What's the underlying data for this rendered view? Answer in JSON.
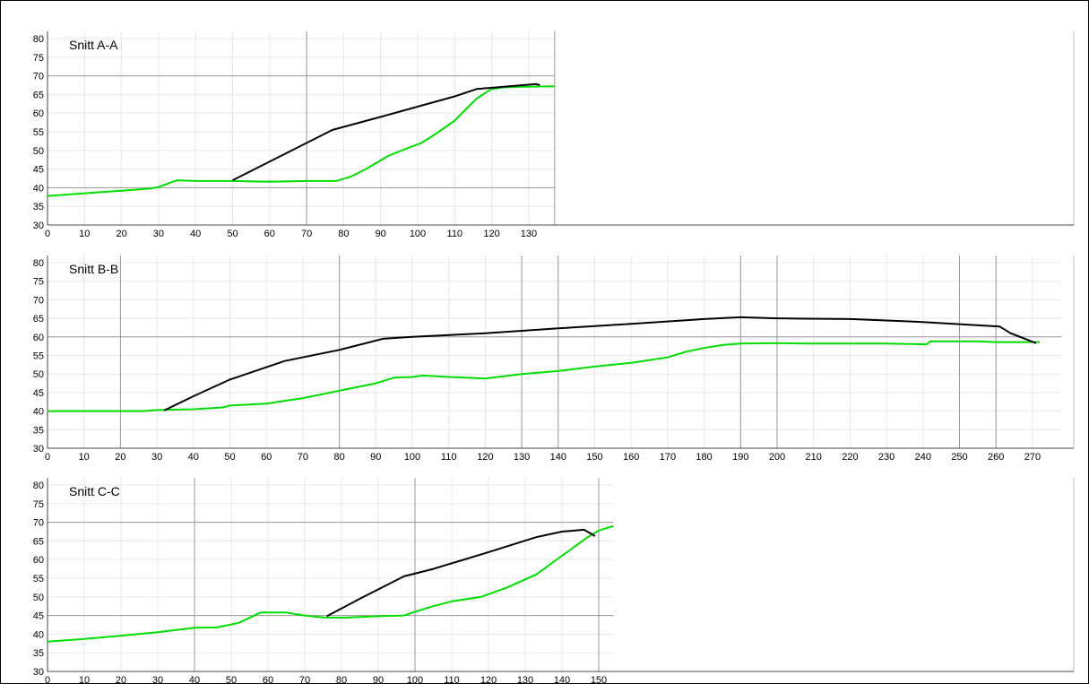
{
  "chart_data": [
    {
      "type": "line",
      "title": "Snitt A-A",
      "xlabel": "",
      "ylabel": "",
      "xlim": [
        0,
        137
      ],
      "ylim": [
        30,
        80
      ],
      "x_ticks": [
        0,
        10,
        20,
        30,
        40,
        50,
        60,
        70,
        80,
        90,
        100,
        110,
        120,
        130
      ],
      "y_ticks": [
        30,
        35,
        40,
        45,
        50,
        55,
        60,
        65,
        70,
        75,
        80
      ],
      "major_x": [
        70,
        137
      ],
      "major_y": [
        40,
        70
      ],
      "series": [
        {
          "color": "#00dd00",
          "points": [
            [
              0,
              37.8
            ],
            [
              10,
              38.5
            ],
            [
              20,
              39.2
            ],
            [
              28,
              39.8
            ],
            [
              30,
              40.2
            ],
            [
              35,
              42
            ],
            [
              40,
              41.8
            ],
            [
              50,
              41.8
            ],
            [
              60,
              41.6
            ],
            [
              70,
              41.8
            ],
            [
              78,
              41.8
            ],
            [
              82,
              43
            ],
            [
              86,
              45
            ],
            [
              92,
              48.5
            ],
            [
              97,
              50.5
            ],
            [
              101,
              52
            ],
            [
              105,
              54.5
            ],
            [
              110,
              58
            ],
            [
              113,
              61
            ],
            [
              116,
              64
            ],
            [
              120,
              66.5
            ],
            [
              124,
              67
            ],
            [
              137,
              67.2
            ]
          ]
        },
        {
          "color": "#000000",
          "points": [
            [
              50,
              42
            ],
            [
              77,
              55.5
            ],
            [
              90,
              59
            ],
            [
              110,
              64.5
            ],
            [
              116,
              66.5
            ],
            [
              132,
              67.8
            ],
            [
              133,
              67.5
            ]
          ]
        }
      ]
    },
    {
      "type": "line",
      "title": "Snitt B-B",
      "xlabel": "",
      "ylabel": "",
      "xlim": [
        0,
        278
      ],
      "ylim": [
        30,
        80
      ],
      "x_ticks": [
        0,
        10,
        20,
        30,
        40,
        50,
        60,
        70,
        80,
        90,
        100,
        110,
        120,
        130,
        140,
        150,
        160,
        170,
        180,
        190,
        200,
        210,
        220,
        230,
        240,
        250,
        260,
        270
      ],
      "y_ticks": [
        30,
        35,
        40,
        45,
        50,
        55,
        60,
        65,
        70,
        75,
        80
      ],
      "major_x": [
        20,
        80,
        130,
        140,
        190,
        200,
        250,
        260
      ],
      "major_y": [
        60
      ],
      "series": [
        {
          "color": "#00dd00",
          "points": [
            [
              0,
              40
            ],
            [
              26,
              40
            ],
            [
              30,
              40.3
            ],
            [
              40,
              40.5
            ],
            [
              48,
              41
            ],
            [
              50,
              41.5
            ],
            [
              60,
              42
            ],
            [
              70,
              43.5
            ],
            [
              80,
              45.5
            ],
            [
              90,
              47.5
            ],
            [
              95,
              49
            ],
            [
              100,
              49.2
            ],
            [
              103,
              49.6
            ],
            [
              110,
              49.2
            ],
            [
              120,
              48.8
            ],
            [
              130,
              50
            ],
            [
              140,
              50.8
            ],
            [
              150,
              52
            ],
            [
              160,
              53
            ],
            [
              170,
              54.5
            ],
            [
              175,
              56
            ],
            [
              180,
              57
            ],
            [
              185,
              57.8
            ],
            [
              190,
              58.2
            ],
            [
              200,
              58.3
            ],
            [
              210,
              58.2
            ],
            [
              220,
              58.2
            ],
            [
              230,
              58.2
            ],
            [
              241,
              58
            ],
            [
              242,
              58.8
            ],
            [
              255,
              58.8
            ],
            [
              260,
              58.6
            ],
            [
              272,
              58.6
            ]
          ]
        },
        {
          "color": "#000000",
          "points": [
            [
              32,
              40.2
            ],
            [
              40,
              44
            ],
            [
              50,
              48.5
            ],
            [
              65,
              53.5
            ],
            [
              80,
              56.5
            ],
            [
              92,
              59.5
            ],
            [
              100,
              60
            ],
            [
              120,
              61
            ],
            [
              140,
              62.3
            ],
            [
              160,
              63.5
            ],
            [
              180,
              64.8
            ],
            [
              190,
              65.3
            ],
            [
              200,
              65
            ],
            [
              220,
              64.8
            ],
            [
              240,
              64
            ],
            [
              261,
              62.8
            ],
            [
              264,
              61
            ],
            [
              271,
              58.3
            ]
          ]
        }
      ]
    },
    {
      "type": "line",
      "title": "Snitt C-C",
      "xlabel": "",
      "ylabel": "",
      "xlim": [
        0,
        154
      ],
      "ylim": [
        30,
        80
      ],
      "x_ticks": [
        0,
        10,
        20,
        30,
        40,
        50,
        60,
        70,
        80,
        90,
        100,
        110,
        120,
        130,
        140,
        150
      ],
      "y_ticks": [
        30,
        35,
        40,
        45,
        50,
        55,
        60,
        65,
        70,
        75,
        80
      ],
      "major_x": [
        40,
        100,
        150
      ],
      "major_y": [
        45,
        70
      ],
      "series": [
        {
          "color": "#00dd00",
          "points": [
            [
              0,
              38
            ],
            [
              10,
              38.7
            ],
            [
              20,
              39.6
            ],
            [
              30,
              40.5
            ],
            [
              40,
              41.7
            ],
            [
              46,
              41.8
            ],
            [
              52,
              43
            ],
            [
              58,
              45.8
            ],
            [
              65,
              45.8
            ],
            [
              70,
              45
            ],
            [
              75,
              44.5
            ],
            [
              80,
              44.4
            ],
            [
              90,
              44.8
            ],
            [
              97,
              45
            ],
            [
              100,
              46
            ],
            [
              105,
              47.5
            ],
            [
              110,
              48.8
            ],
            [
              118,
              50
            ],
            [
              125,
              52.5
            ],
            [
              133,
              56
            ],
            [
              140,
              61
            ],
            [
              147,
              66
            ],
            [
              150,
              67.8
            ],
            [
              154,
              69
            ]
          ]
        },
        {
          "color": "#000000",
          "points": [
            [
              76,
              44.8
            ],
            [
              85,
              49.5
            ],
            [
              97,
              55.5
            ],
            [
              105,
              57.5
            ],
            [
              120,
              62
            ],
            [
              133,
              66
            ],
            [
              140,
              67.5
            ],
            [
              146,
              68
            ],
            [
              149,
              66.3
            ]
          ]
        }
      ]
    }
  ]
}
